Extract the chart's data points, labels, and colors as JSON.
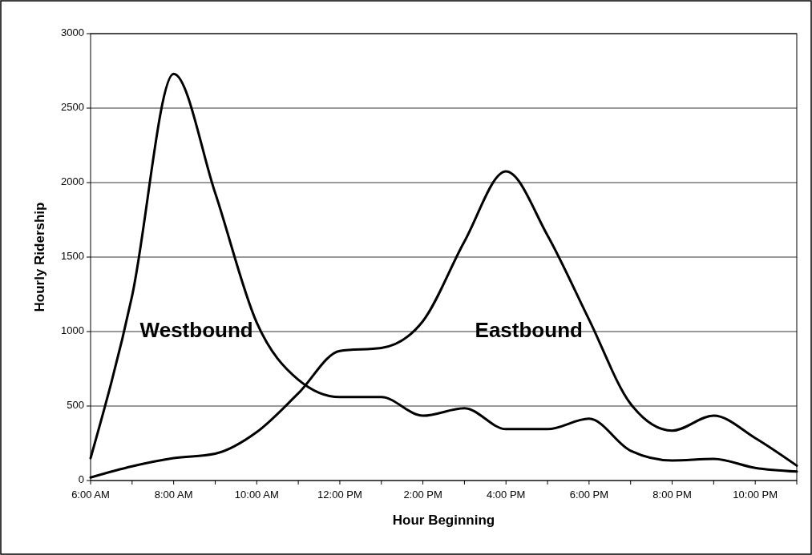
{
  "chart_data": {
    "type": "line",
    "xlabel": "Hour Beginning",
    "ylabel": "Hourly Ridership",
    "x": [
      6,
      7,
      8,
      9,
      10,
      11,
      12,
      13,
      14,
      15,
      16,
      17,
      18,
      19,
      20,
      21,
      22,
      23
    ],
    "xlim": [
      6,
      23
    ],
    "xticks": [
      {
        "value": 6,
        "label": "6:00 AM"
      },
      {
        "value": 7,
        "label": null
      },
      {
        "value": 8,
        "label": "8:00 AM"
      },
      {
        "value": 9,
        "label": null
      },
      {
        "value": 10,
        "label": "10:00 AM"
      },
      {
        "value": 11,
        "label": null
      },
      {
        "value": 12,
        "label": "12:00 PM"
      },
      {
        "value": 13,
        "label": null
      },
      {
        "value": 14,
        "label": "2:00 PM"
      },
      {
        "value": 15,
        "label": null
      },
      {
        "value": 16,
        "label": "4:00 PM"
      },
      {
        "value": 17,
        "label": null
      },
      {
        "value": 18,
        "label": "6:00 PM"
      },
      {
        "value": 19,
        "label": null
      },
      {
        "value": 20,
        "label": "8:00 PM"
      },
      {
        "value": 21,
        "label": null
      },
      {
        "value": 22,
        "label": "10:00 PM"
      },
      {
        "value": 23,
        "label": null
      }
    ],
    "ylim": [
      0,
      3000
    ],
    "yticks": [
      0,
      500,
      1000,
      1500,
      2000,
      2500,
      3000
    ],
    "grid": "y",
    "marker": "none",
    "line_style": "solid",
    "series": [
      {
        "name": "Westbound",
        "color": "#000000",
        "values": [
          150,
          1240,
          2730,
          1930,
          1060,
          677,
          560,
          560,
          435,
          485,
          345,
          345,
          415,
          200,
          135,
          145,
          85,
          60
        ]
      },
      {
        "name": "Eastbound",
        "color": "#000000",
        "values": [
          20,
          95,
          150,
          180,
          325,
          585,
          870,
          890,
          1070,
          1605,
          2075,
          1645,
          1080,
          515,
          335,
          435,
          285,
          100
        ]
      }
    ]
  }
}
